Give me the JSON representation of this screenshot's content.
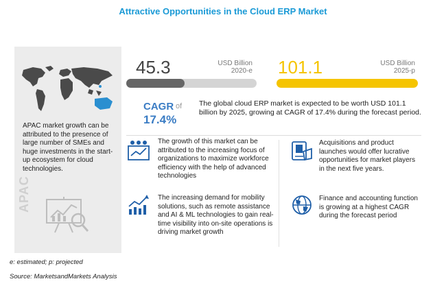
{
  "title": "Attractive Opportunities in the Cloud ERP Market",
  "apac": {
    "text": "APAC market growth can be attributed to the presence of large number of SMEs and huge investments in the start-up ecosystem for cloud technologies.",
    "vertical_label": "APAC"
  },
  "market": {
    "value_2020": "45.3",
    "unit_2020": "USD Billion",
    "year_2020": "2020-e",
    "value_2025": "101.1",
    "unit_2025": "USD Billion",
    "year_2025": "2025-p",
    "bar_2020_fraction": 0.448,
    "bar_2025_fraction": 1.0
  },
  "cagr": {
    "label": "CAGR",
    "of": "of",
    "value": "17.4%",
    "text": "The global cloud ERP market is expected to be worth USD 101.1 billion by 2025, growing at CAGR of 17.4% during the forecast period."
  },
  "insights": [
    {
      "icon": "workforce-icon",
      "text": "The growth of this market can be attributed to the increasing focus of organizations to maximize workforce efficiency with the help of advanced technologies"
    },
    {
      "icon": "acquisition-icon",
      "text": "Acquisitions and product launches would offer lucrative opportunities for market players in the next five years."
    },
    {
      "icon": "growth-chart-icon",
      "text": "The increasing demand for mobility solutions, such as remote assistance and AI & ML technologies to gain real-time visibility into on-site operations is driving market growth"
    },
    {
      "icon": "globe-dollar-icon",
      "text": "Finance and accounting function is growing at a highest CAGR during the forecast period"
    }
  ],
  "footnotes": {
    "legend": "e: estimated; p: projected",
    "source": "Source: MarketsandMarkets Analysis"
  },
  "colors": {
    "title": "#1a9ad6",
    "cagr": "#3a7cc4",
    "accent_yellow": "#f5c400",
    "bar_dark": "#666666"
  }
}
